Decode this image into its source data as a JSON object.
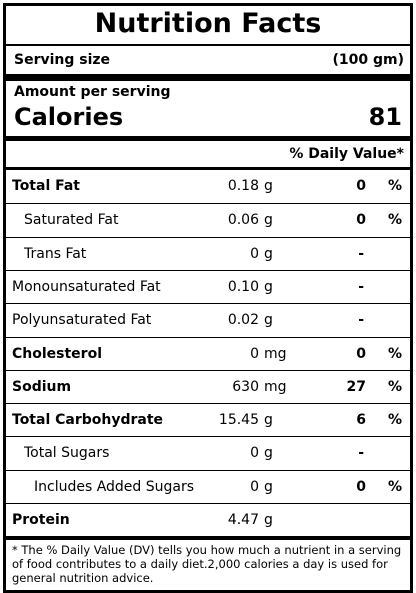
{
  "header": {
    "title": "Nutrition Facts",
    "serving_label": "Serving size",
    "serving_value": "(100 gm)"
  },
  "calories": {
    "caption": "Amount per serving",
    "label": "Calories",
    "value": "81"
  },
  "dv_header": "% Daily Value*",
  "rows": [
    {
      "name": "Total Fat",
      "amount": "0.18",
      "unit": "g",
      "dv": "0",
      "dv_unit": "%"
    },
    {
      "name": "Saturated Fat",
      "amount": "0.06",
      "unit": "g",
      "dv": "0",
      "dv_unit": "%"
    },
    {
      "name": "Trans Fat",
      "amount": "0",
      "unit": "g",
      "dv": "-"
    },
    {
      "name": "Monounsaturated Fat",
      "amount": "0.10",
      "unit": "g",
      "dv": "-"
    },
    {
      "name": "Polyunsaturated Fat",
      "amount": "0.02",
      "unit": "g",
      "dv": "-"
    },
    {
      "name": "Cholesterol",
      "amount": "0",
      "unit": "mg",
      "dv": "0",
      "dv_unit": "%"
    },
    {
      "name": "Sodium",
      "amount": "630",
      "unit": "mg",
      "dv": "27",
      "dv_unit": "%"
    },
    {
      "name": "Total Carbohydrate",
      "amount": "15.45",
      "unit": "g",
      "dv": "6",
      "dv_unit": "%"
    },
    {
      "name": "Total Sugars",
      "amount": "0",
      "unit": "g",
      "dv": "-"
    },
    {
      "name": "Includes Added Sugars",
      "amount": "0",
      "unit": "g",
      "dv": "0",
      "dv_unit": "%"
    },
    {
      "name": "Protein",
      "amount": "4.47",
      "unit": "g"
    }
  ],
  "footnote": "* The % Daily Value (DV) tells you how much a nutrient in a serving of food contributes to a daily diet.2,000 calories a day is used for general nutrition advice."
}
